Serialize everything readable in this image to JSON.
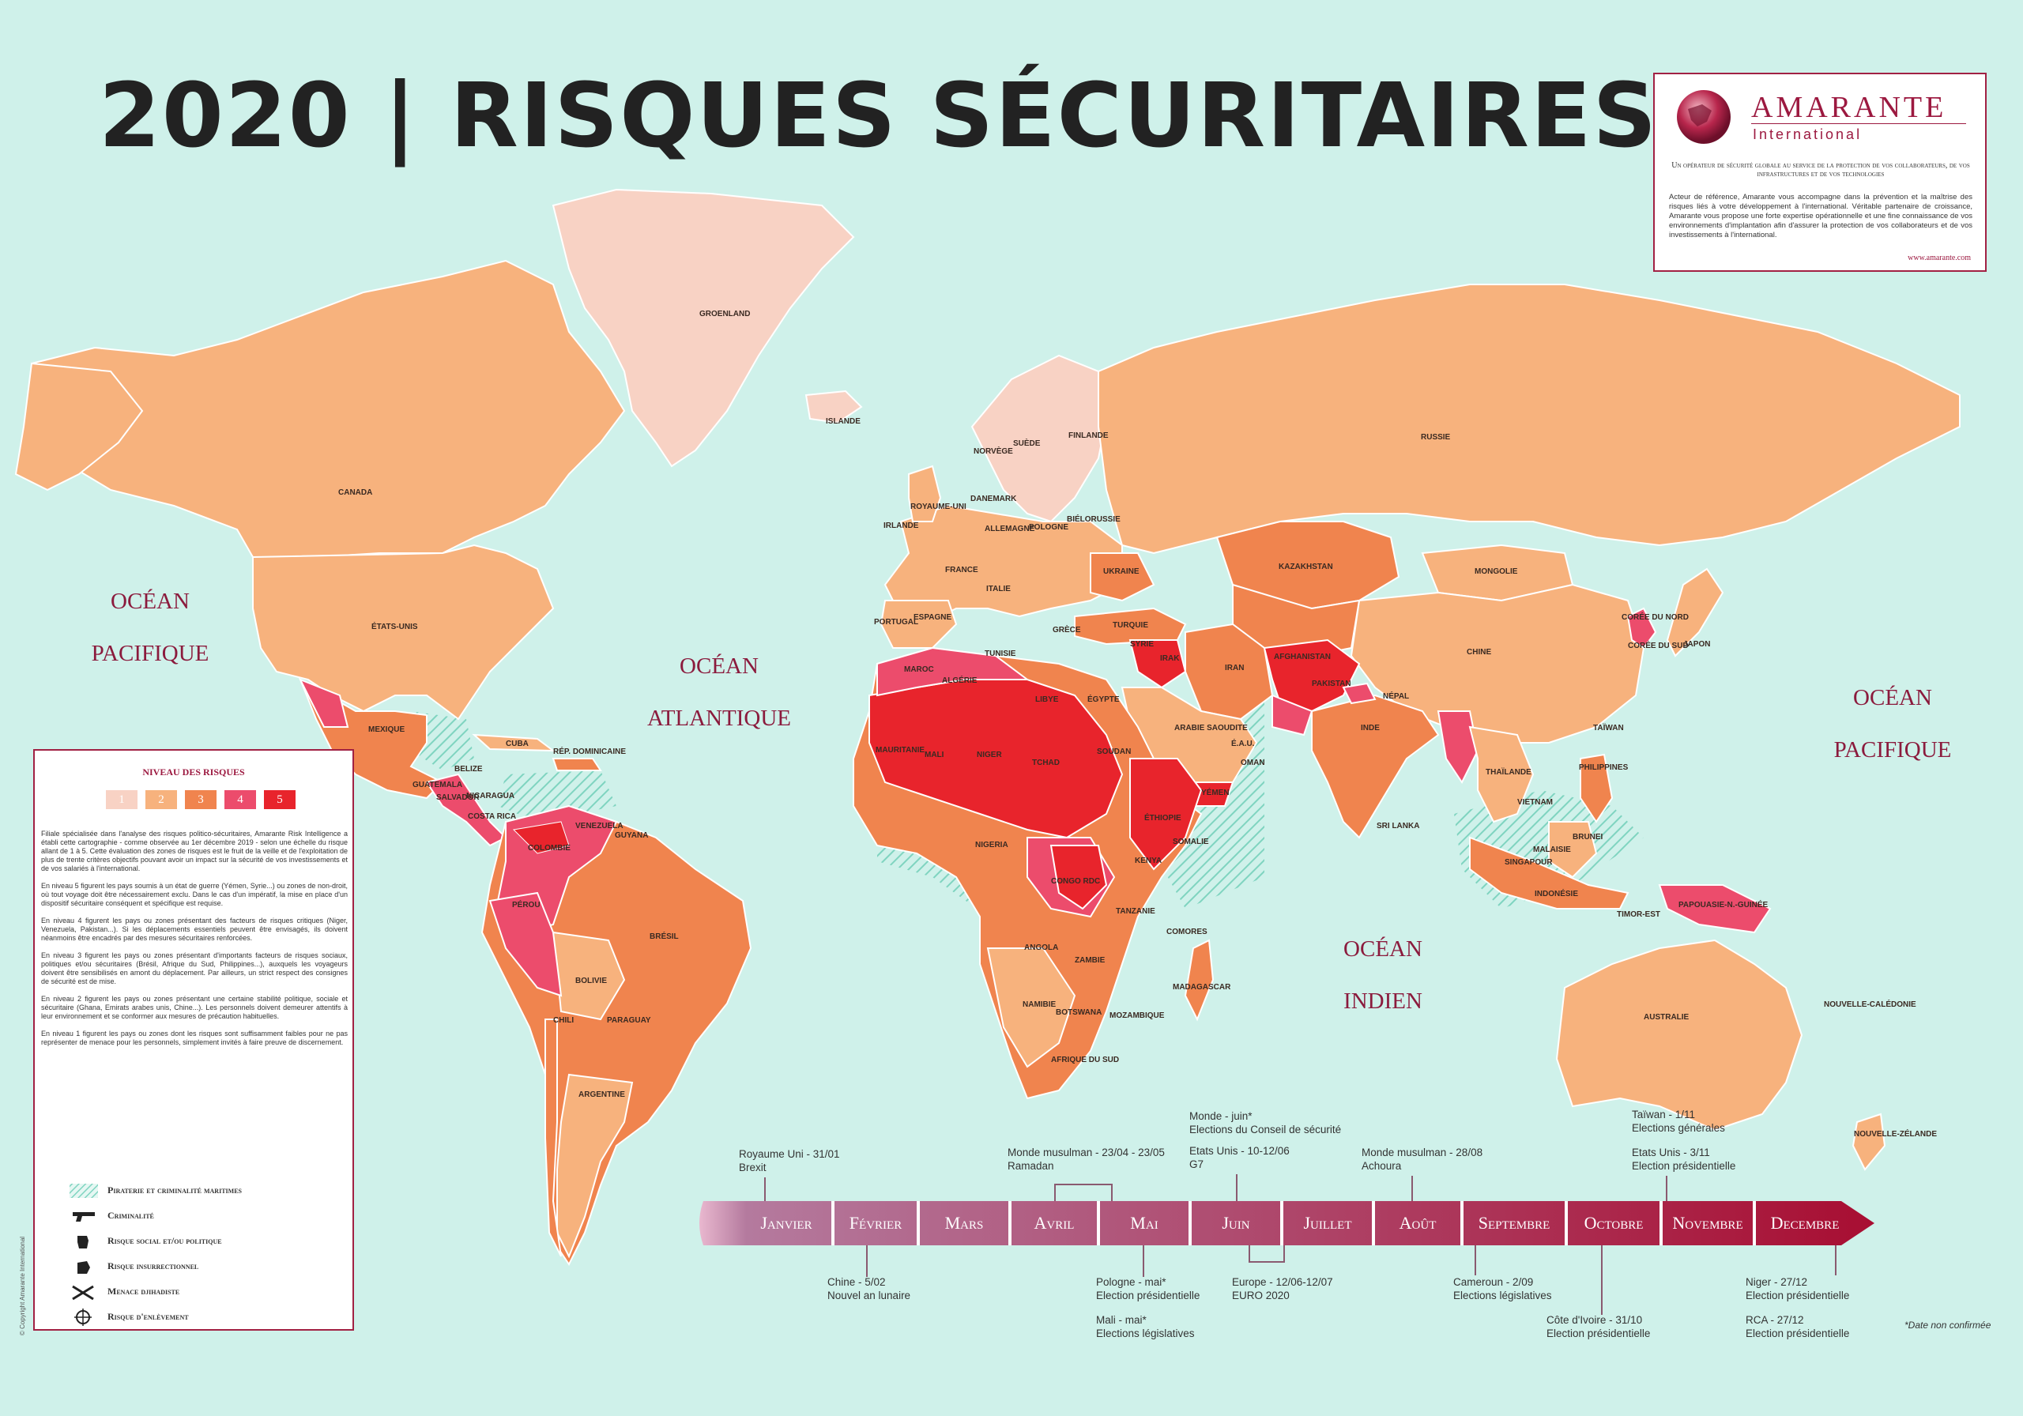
{
  "title": "2020 | RISQUES SÉCURITAIRES",
  "colors": {
    "sea": "#cff1ea",
    "level_1": "#f8d2c4",
    "level_2": "#f7b27d",
    "level_3": "#f0844e",
    "level_4": "#ec4c6c",
    "level_5": "#e8242c",
    "brand": "#9c1940",
    "maritime": "#8fd8c6"
  },
  "oceans": {
    "pacific_west": [
      "OCÉAN",
      "PACIFIQUE"
    ],
    "atlantic": [
      "OCÉAN",
      "ATLANTIQUE"
    ],
    "indian": [
      "OCÉAN",
      "INDIEN"
    ],
    "pacific_east": [
      "OCÉAN",
      "PACIFIQUE"
    ]
  },
  "countries": {
    "greenland": "GROENLAND",
    "iceland": "ISLANDE",
    "canada": "CANADA",
    "usa": "ÉTATS-UNIS",
    "mexico": "MEXIQUE",
    "cuba": "CUBA",
    "dominican": "RÉP. DOMINICAINE",
    "belize": "BELIZE",
    "guatemala": "GUATEMALA",
    "salvador": "SALVADOR",
    "nicaragua": "NICARAGUA",
    "costarica": "COSTA RICA",
    "colombia": "COLOMBIE",
    "venezuela": "VENEZUELA",
    "guyana": "GUYANA",
    "peru": "PÉROU",
    "brazil": "BRÉSIL",
    "bolivia": "BOLIVIE",
    "paraguay": "PARAGUAY",
    "chile": "CHILI",
    "argentina": "ARGENTINE",
    "norway": "NORVÈGE",
    "sweden": "SUÈDE",
    "finland": "FINLANDE",
    "uk": "ROYAUME-UNI",
    "ireland": "IRLANDE",
    "denmark": "DANEMARK",
    "germany": "ALLEMAGNE",
    "poland": "POLOGNE",
    "belarus": "BIÉLORUSSIE",
    "ukraine": "UKRAINE",
    "france": "FRANCE",
    "spain": "ESPAGNE",
    "portugal": "PORTUGAL",
    "italy": "ITALIE",
    "turkey": "TURQUIE",
    "greece": "GRÈCE",
    "russia": "RUSSIE",
    "kazakhstan": "KAZAKHSTAN",
    "mongolia": "MONGOLIE",
    "china": "CHINE",
    "japan": "JAPON",
    "southkorea": "CORÉE DU SUD",
    "northkorea": "CORÉE DU NORD",
    "iran": "IRAN",
    "iraq": "IRAK",
    "syria": "SYRIE",
    "afghanistan": "AFGHANISTAN",
    "pakistan": "PAKISTAN",
    "india": "INDE",
    "nepal": "NÉPAL",
    "saudi": "ARABIE SAOUDITE",
    "uae": "É.A.U.",
    "yemen": "YÉMEN",
    "oman": "OMAN",
    "egypt": "ÉGYPTE",
    "libya": "LIBYE",
    "algeria": "ALGÉRIE",
    "morocco": "MAROC",
    "tunisia": "TUNISIE",
    "mauritania": "MAURITANIE",
    "mali": "MALI",
    "niger": "NIGER",
    "chad": "TCHAD",
    "sudan": "SOUDAN",
    "ethiopia": "ÉTHIOPIE",
    "somalia": "SOMALIE",
    "kenya": "KENYA",
    "nigeria": "NIGERIA",
    "drc": "CONGO RDC",
    "tanzania": "TANZANIE",
    "angola": "ANGOLA",
    "zambia": "ZAMBIE",
    "namibia": "NAMIBIE",
    "botswana": "BOTSWANA",
    "mozambique": "MOZAMBIQUE",
    "madagascar": "MADAGASCAR",
    "southafrica": "AFRIQUE DU SUD",
    "thailand": "THAÏLANDE",
    "vietnam": "VIETNAM",
    "philippines": "PHILIPPINES",
    "malaysia": "MALAISIE",
    "indonesia": "INDONÉSIE",
    "papua": "PAPOUASIE-N.-GUINÉE",
    "australia": "AUSTRALIE",
    "newzealand": "NOUVELLE-ZÉLANDE",
    "newcaledonia": "NOUVELLE-CALÉDONIE",
    "taiwan": "TAÏWAN",
    "srilanka": "SRI LANKA",
    "timor": "TIMOR-EST",
    "comoros": "COMORES",
    "singapore": "SINGAPOUR",
    "brunei": "BRUNEI"
  },
  "amarante": {
    "name": "AMARANTE",
    "sub": "International",
    "tagline": "Un opérateur de sécurité globale au service de la protection de vos collaborateurs, de vos infrastructures et de vos technologies",
    "description": "Acteur de référence, Amarante vous accompagne dans la prévention et la maîtrise des risques liés à votre développement à l'international. Véritable partenaire de croissance, Amarante vous propose une forte expertise opérationnelle et une fine connaissance de vos environnements d'implantation afin d'assurer la protection de vos collaborateurs et de vos investissements à l'international.",
    "url": "www.amarante.com"
  },
  "legend": {
    "title": "NIVEAU DES RISQUES",
    "levels": [
      "1",
      "2",
      "3",
      "4",
      "5"
    ],
    "paragraphs": [
      "Filiale spécialisée dans l'analyse des risques politico-sécuritaires, Amarante Risk Intelligence a établi cette cartographie - comme observée au 1er décembre 2019 - selon une échelle du risque allant de 1 à 5. Cette évaluation des zones de risques est le fruit de la veille et de l'exploitation de plus de trente critères objectifs pouvant avoir un impact sur la sécurité de vos investissements et de vos salariés à l'international.",
      "En niveau 5 figurent les pays soumis à un état de guerre (Yémen, Syrie...) ou zones de non-droit, où tout voyage doit être nécessairement exclu. Dans le cas d'un impératif, la mise en place d'un dispositif sécuritaire conséquent et spécifique est requise.",
      "En niveau 4 figurent les pays ou zones présentant des facteurs de risques critiques (Niger, Venezuela, Pakistan...). Si les déplacements essentiels peuvent être envisagés, ils doivent néanmoins être encadrés par des mesures sécuritaires renforcées.",
      "En niveau 3 figurent les pays ou zones présentant d'importants facteurs de risques sociaux, politiques et/ou sécuritaires (Brésil, Afrique du Sud, Philippines...), auxquels les voyageurs doivent être sensibilisés en amont du déplacement. Par ailleurs, un strict respect des consignes de sécurité est de mise.",
      "En niveau 2 figurent les pays ou zones présentant une certaine stabilité politique, sociale et sécuritaire (Ghana, Emirats arabes unis, Chine...). Les personnels doivent demeurer attentifs à leur environnement et se conformer aux mesures de précaution habituelles.",
      "En niveau 1 figurent les pays ou zones dont les risques sont suffisamment faibles pour ne pas représenter de menace pour les personnels, simplement invités à faire preuve de discernement."
    ],
    "icons": [
      {
        "icon": "maritime-hatch-icon",
        "label": "Piraterie et criminalité maritimes"
      },
      {
        "icon": "gun-icon",
        "label": "Criminalité"
      },
      {
        "icon": "fist-icon",
        "label": "Risque social et/ou politique"
      },
      {
        "icon": "grenade-icon",
        "label": "Risque insurrectionnel"
      },
      {
        "icon": "crossed-rifles-icon",
        "label": "Menace djihadiste"
      },
      {
        "icon": "target-icon",
        "label": "Risque d'enlèvement"
      }
    ],
    "copyright": "© Copyright Amarante International"
  },
  "timeline": {
    "months": [
      "Janvier",
      "Février",
      "Mars",
      "Avril",
      "Mai",
      "Juin",
      "Juillet",
      "Août",
      "Septembre",
      "Octobre",
      "Novembre",
      "Decembre"
    ],
    "events_above": [
      {
        "line1": "Royaume Uni - 31/01",
        "line2": "Brexit"
      },
      {
        "line1": "Monde musulman - 23/04 - 23/05",
        "line2": "Ramadan"
      },
      {
        "line1": "Monde - juin*",
        "line2": "Elections du Conseil de sécurité"
      },
      {
        "line1": "Etats Unis - 10-12/06",
        "line2": "G7"
      },
      {
        "line1": "Monde musulman - 28/08",
        "line2": "Achoura"
      },
      {
        "line1": "Taïwan - 1/11",
        "line2": "Elections générales"
      },
      {
        "line1": "Etats Unis - 3/11",
        "line2": "Election présidentielle"
      }
    ],
    "events_below": [
      {
        "line1": "Chine - 5/02",
        "line2": "Nouvel an lunaire"
      },
      {
        "line1": "Pologne - mai*",
        "line2": "Election présidentielle"
      },
      {
        "line1": "Mali - mai*",
        "line2": "Elections législatives"
      },
      {
        "line1": "Europe - 12/06-12/07",
        "line2": "EURO 2020"
      },
      {
        "line1": "Cameroun - 2/09",
        "line2": "Elections législatives"
      },
      {
        "line1": "Côte d'Ivoire - 31/10",
        "line2": "Election présidentielle"
      },
      {
        "line1": "Niger - 27/12",
        "line2": "Election présidentielle"
      },
      {
        "line1": "RCA - 27/12",
        "line2": "Election présidentielle"
      }
    ],
    "note": "*Date non confirmée"
  }
}
